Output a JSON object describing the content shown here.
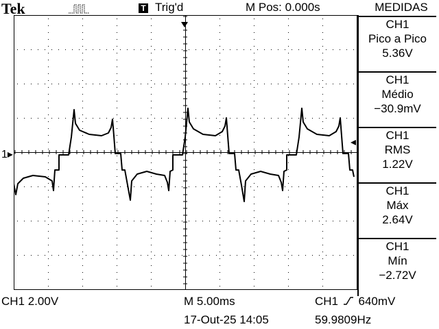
{
  "header": {
    "brand": "Tek",
    "acquire_icon": "run-pulse-icon",
    "trigger_badge": "T",
    "trigger_status": "Trig'd",
    "horizontal_position": "M Pos: 0.000s"
  },
  "menu": {
    "title": "MEDIDAS",
    "measurements": [
      {
        "source": "CH1",
        "type": "Pico a Pico",
        "value": "5.36V"
      },
      {
        "source": "CH1",
        "type": "Médio",
        "value": "−30.9mV"
      },
      {
        "source": "CH1",
        "type": "RMS",
        "value": "1.22V"
      },
      {
        "source": "CH1",
        "type": "Máx",
        "value": "2.64V"
      },
      {
        "source": "CH1",
        "type": "Mín",
        "value": "−2.72V"
      }
    ]
  },
  "channel_marker": "1",
  "footer": {
    "ch1_scale": "CH1  2.00V",
    "timebase": "M 5.00ms",
    "trigger_source": "CH1",
    "trigger_slope_icon": "rising-edge-icon",
    "trigger_level": "640mV",
    "date": "17-Out-25 14:05",
    "frequency": "59.9809Hz"
  },
  "colors": {
    "trace": "#000000",
    "background": "#ffffff",
    "grid": "#000000"
  }
}
